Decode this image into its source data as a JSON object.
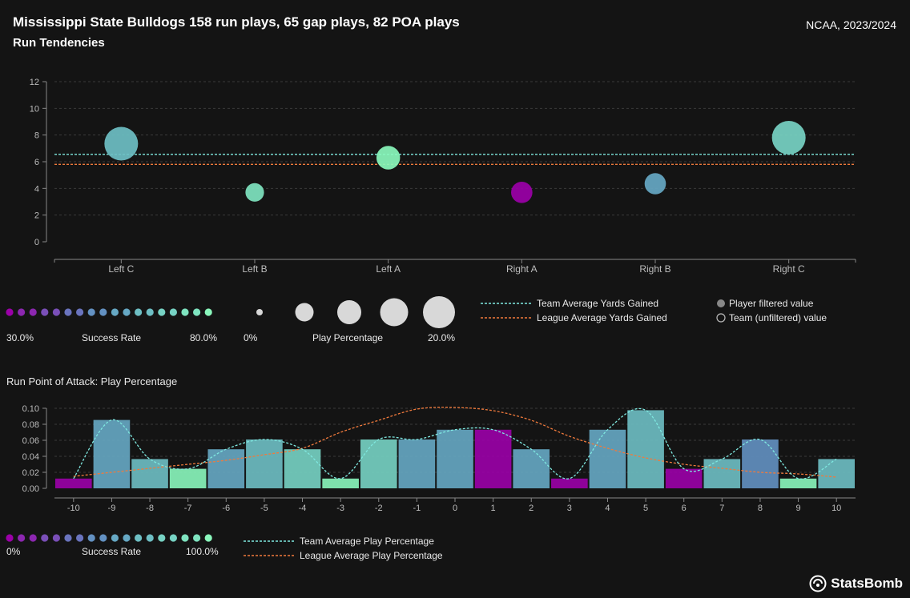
{
  "header": {
    "title": "Mississippi State Bulldogs 158 run plays, 65 gap plays, 82 POA plays",
    "subtitle": "Run Tendencies",
    "competition": "NCAA, 2023/2024"
  },
  "colors": {
    "background": "#141414",
    "team_avg_line": "#7fe8e0",
    "league_avg_line": "#f07a3c",
    "success_scale": [
      "#9b00a8",
      "#8c27b0",
      "#7a4fb8",
      "#6a74be",
      "#6391c2",
      "#66a8c4",
      "#6ebfc4",
      "#77d3c4",
      "#7fe4c0",
      "#8af7bc"
    ]
  },
  "chart_data": [
    {
      "type": "scatter",
      "title": "Run Tendencies",
      "categories": [
        "Left C",
        "Left B",
        "Left A",
        "Right A",
        "Right B",
        "Right C"
      ],
      "ylim": [
        0,
        12
      ],
      "yticks": [
        0,
        2,
        4,
        6,
        8,
        10,
        12
      ],
      "grid": true,
      "series": [
        {
          "points": [
            {
              "x": "Left C",
              "y": 7.35,
              "play_pct": 0.2,
              "success": 0.62
            },
            {
              "x": "Left B",
              "y": 3.7,
              "play_pct": 0.04,
              "success": 0.77
            },
            {
              "x": "Left A",
              "y": 6.3,
              "play_pct": 0.08,
              "success": 0.8
            },
            {
              "x": "Right A",
              "y": 3.7,
              "play_pct": 0.06,
              "success": 0.3
            },
            {
              "x": "Right B",
              "y": 4.35,
              "play_pct": 0.06,
              "success": 0.55
            },
            {
              "x": "Right C",
              "y": 7.8,
              "play_pct": 0.2,
              "success": 0.7
            }
          ]
        }
      ],
      "team_average": 6.55,
      "league_average": 5.8
    },
    {
      "type": "bar",
      "title": "Run Point of Attack: Play Percentage",
      "categories": [
        "-10",
        "-9",
        "-8",
        "-7",
        "-6",
        "-5",
        "-4",
        "-3",
        "-2",
        "-1",
        "0",
        "1",
        "2",
        "3",
        "4",
        "5",
        "6",
        "7",
        "8",
        "9",
        "10"
      ],
      "ylim": [
        0,
        0.1
      ],
      "yticks": [
        0.0,
        0.02,
        0.04,
        0.06,
        0.08,
        0.1
      ],
      "ytick_labels": [
        "0.00",
        "0.02",
        "0.04",
        "0.06",
        "0.08",
        "0.10"
      ],
      "grid": true,
      "values": [
        0.0122,
        0.0854,
        0.0366,
        0.0244,
        0.0488,
        0.061,
        0.0488,
        0.0122,
        0.061,
        0.061,
        0.0732,
        0.0732,
        0.0488,
        0.0122,
        0.0732,
        0.0976,
        0.0244,
        0.0366,
        0.061,
        0.0122,
        0.0366
      ],
      "success": [
        0.0,
        0.6,
        0.7,
        1.0,
        0.5,
        0.66,
        0.75,
        1.0,
        0.8,
        0.6,
        0.5,
        0.0,
        0.5,
        0.0,
        0.5,
        0.67,
        0.0,
        0.67,
        0.4,
        1.0,
        0.67
      ],
      "team_average": [
        0.0122,
        0.0854,
        0.0366,
        0.0244,
        0.0488,
        0.061,
        0.0488,
        0.0122,
        0.061,
        0.061,
        0.0732,
        0.0732,
        0.0488,
        0.0122,
        0.0732,
        0.0976,
        0.0244,
        0.0366,
        0.061,
        0.0122,
        0.0366
      ],
      "league_average": [
        0.015,
        0.02,
        0.025,
        0.03,
        0.035,
        0.042,
        0.05,
        0.07,
        0.085,
        0.099,
        0.101,
        0.097,
        0.085,
        0.065,
        0.05,
        0.038,
        0.03,
        0.025,
        0.02,
        0.018,
        0.014
      ]
    }
  ],
  "legend1": {
    "success_min": "30.0%",
    "success_label": "Success Rate",
    "success_max": "80.0%",
    "play_min": "0%",
    "play_label": "Play Percentage",
    "play_max": "20.0%",
    "team_avg": "Team Average Yards Gained",
    "league_avg": "League Average Yards Gained",
    "player_filtered": "Player filtered value",
    "team_unfiltered": "Team (unfiltered) value"
  },
  "legend2": {
    "success_min": "0%",
    "success_label": "Success Rate",
    "success_max": "100.0%",
    "team_avg": "Team Average Play Percentage",
    "league_avg": "League Average Play Percentage"
  },
  "brand": {
    "logo_text": "StatsBomb",
    "logo_icon": "statsbomb-logo-icon"
  }
}
